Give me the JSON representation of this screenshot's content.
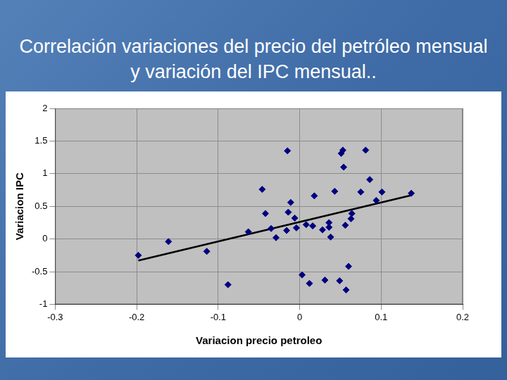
{
  "chart_data": {
    "type": "scatter",
    "title": "Correlación variaciones del precio del petróleo mensual y variación del IPC mensual..",
    "x_label": "Variacion precio petroleo",
    "y_label": "Variacion IPC",
    "series": [
      {
        "type": "scatter",
        "color": "#000080",
        "marker": "diamond",
        "x": [
          -0.198,
          -0.161,
          -0.114,
          -0.088,
          -0.063,
          -0.046,
          -0.042,
          -0.035,
          -0.029,
          -0.015,
          -0.011,
          -0.014,
          -0.016,
          -0.006,
          -0.004,
          0.003,
          0.008,
          0.012,
          0.016,
          0.018,
          0.028,
          0.031,
          0.036,
          0.036,
          0.038,
          0.043,
          0.049,
          0.051,
          0.053,
          0.054,
          0.056,
          0.057,
          0.06,
          0.063,
          0.064,
          0.075,
          0.081,
          0.086,
          0.094,
          0.101,
          0.137
        ],
        "values": [
          -0.25,
          -0.04,
          -0.19,
          -0.7,
          0.11,
          0.76,
          0.39,
          0.16,
          0.02,
          1.35,
          0.56,
          0.41,
          0.13,
          0.32,
          0.17,
          -0.55,
          0.22,
          -0.68,
          0.2,
          0.66,
          0.14,
          -0.63,
          0.25,
          0.18,
          0.03,
          0.73,
          -0.64,
          1.31,
          1.36,
          1.1,
          0.21,
          -0.78,
          -0.42,
          0.31,
          0.39,
          0.72,
          1.36,
          0.91,
          0.59,
          0.72,
          0.7
        ]
      },
      {
        "type": "line",
        "color": "#000000",
        "line_style": "solid",
        "x": [
          -0.198,
          0.137
        ],
        "values": [
          -0.33,
          0.67
        ]
      }
    ],
    "xlim": [
      -0.3,
      0.2
    ],
    "xticks": [
      -0.3,
      -0.2,
      -0.1,
      0,
      0.1,
      0.2
    ],
    "ylim": [
      -1,
      2
    ],
    "yticks": [
      -1,
      -0.5,
      0,
      0.5,
      1,
      1.5,
      2
    ],
    "grid": true
  }
}
